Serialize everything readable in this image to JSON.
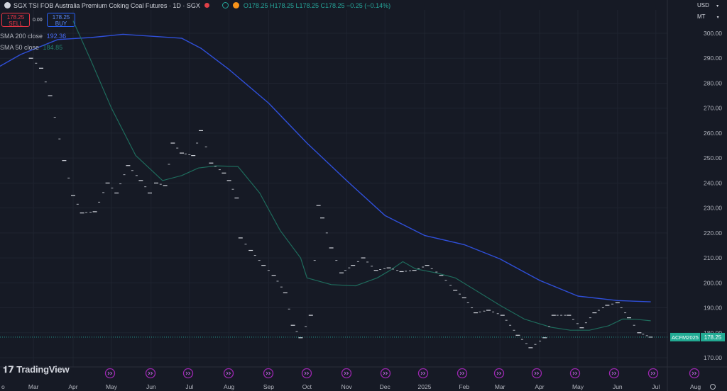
{
  "header": {
    "symbol_title": "SGX TSI FOB Australia Premium Coking Coal Futures · 1D · SGX",
    "ohlc": "O178.25 H178.25 L178.25 C178.25 −0.25 (−0.14%)"
  },
  "trade": {
    "sell_price": "178.25",
    "sell_label": "SELL",
    "spread": "0.00",
    "buy_price": "178.25",
    "buy_label": "BUY"
  },
  "indicators": {
    "sma200_label": "SMA 200 close",
    "sma200_value": "192.36",
    "sma50_label": "SMA 50 close",
    "sma50_value": "184.85"
  },
  "right_controls": {
    "currency": "USD",
    "unit": "MT"
  },
  "branding": {
    "logo_text": "TradingView"
  },
  "price_tag": {
    "symbol": "ACFM2025",
    "price": "178.25"
  },
  "colors": {
    "background": "#161a25",
    "sma200": "#2f4fd9",
    "sma50": "#1e6b5c",
    "price": "#26a69a",
    "label": "#22ab94"
  },
  "chart_data": {
    "type": "line",
    "title": "SGX TSI FOB Australia Premium Coking Coal Futures",
    "ylim": [
      165,
      305
    ],
    "y_ticks": [
      170,
      180,
      190,
      200,
      210,
      220,
      230,
      240,
      250,
      260,
      270,
      280,
      290,
      300
    ],
    "x_ticks": [
      "Mar",
      "Apr",
      "May",
      "Jun",
      "Jul",
      "Aug",
      "Sep",
      "Oct",
      "Nov",
      "Dec",
      "2025",
      "Feb",
      "Mar",
      "Apr",
      "May",
      "Jun",
      "Jul",
      "Aug"
    ],
    "x_start": "2024-02-01",
    "last_price": 178.25,
    "series": [
      {
        "name": "SMA 200 close",
        "color": "#2f4fd9",
        "points": [
          [
            "2024-02-01",
            286
          ],
          [
            "2024-02-20",
            291.5
          ],
          [
            "2024-03-20",
            297.5
          ],
          [
            "2024-04-15",
            298.3
          ],
          [
            "2024-05-10",
            299.6
          ],
          [
            "2024-06-05",
            298.7
          ],
          [
            "2024-06-25",
            298
          ],
          [
            "2024-07-10",
            294
          ],
          [
            "2024-08-01",
            285.5
          ],
          [
            "2024-09-01",
            272
          ],
          [
            "2024-10-01",
            256
          ],
          [
            "2024-11-01",
            241
          ],
          [
            "2024-12-01",
            227
          ],
          [
            "2025-01-01",
            219
          ],
          [
            "2025-02-01",
            215.3
          ],
          [
            "2025-03-01",
            209.6
          ],
          [
            "2025-04-01",
            201
          ],
          [
            "2025-05-01",
            194.7
          ],
          [
            "2025-06-01",
            192.9
          ],
          [
            "2025-06-27",
            192.4
          ]
        ]
      },
      {
        "name": "SMA 50 close",
        "color": "#1e6b5c",
        "points": [
          [
            "2024-04-01",
            305
          ],
          [
            "2024-04-15",
            289
          ],
          [
            "2024-05-01",
            270
          ],
          [
            "2024-05-20",
            251
          ],
          [
            "2024-06-10",
            241
          ],
          [
            "2024-06-25",
            243
          ],
          [
            "2024-07-08",
            246
          ],
          [
            "2024-07-22",
            246.9
          ],
          [
            "2024-08-08",
            246.6
          ],
          [
            "2024-08-25",
            236
          ],
          [
            "2024-09-10",
            221
          ],
          [
            "2024-09-26",
            210
          ],
          [
            "2024-10-01",
            202
          ],
          [
            "2024-10-20",
            199.3
          ],
          [
            "2024-11-08",
            198.8
          ],
          [
            "2024-11-25",
            202
          ],
          [
            "2024-12-05",
            205
          ],
          [
            "2024-12-15",
            208.5
          ],
          [
            "2024-12-25",
            205.6
          ],
          [
            "2025-01-10",
            204
          ],
          [
            "2025-01-25",
            202
          ],
          [
            "2025-02-10",
            197
          ],
          [
            "2025-03-01",
            191
          ],
          [
            "2025-03-20",
            185.5
          ],
          [
            "2025-04-10",
            182.2
          ],
          [
            "2025-04-25",
            181
          ],
          [
            "2025-05-10",
            181
          ],
          [
            "2025-05-25",
            182.8
          ],
          [
            "2025-06-05",
            185.5
          ],
          [
            "2025-06-15",
            185.4
          ],
          [
            "2025-06-27",
            184.8
          ]
        ]
      },
      {
        "name": "Close",
        "color": "#26a69a",
        "points": [
          [
            "2024-02-28",
            290
          ],
          [
            "2024-03-07",
            286
          ],
          [
            "2024-03-14",
            275
          ],
          [
            "2024-03-25",
            249
          ],
          [
            "2024-04-01",
            235
          ],
          [
            "2024-04-08",
            228
          ],
          [
            "2024-04-18",
            228.5
          ],
          [
            "2024-04-28",
            240
          ],
          [
            "2024-05-05",
            236
          ],
          [
            "2024-05-14",
            247
          ],
          [
            "2024-05-24",
            241
          ],
          [
            "2024-05-31",
            236
          ],
          [
            "2024-06-05",
            240
          ],
          [
            "2024-06-12",
            239
          ],
          [
            "2024-06-18",
            256
          ],
          [
            "2024-06-25",
            252
          ],
          [
            "2024-07-04",
            251
          ],
          [
            "2024-07-10",
            261
          ],
          [
            "2024-07-18",
            248
          ],
          [
            "2024-07-28",
            244
          ],
          [
            "2024-08-01",
            241
          ],
          [
            "2024-08-07",
            234
          ],
          [
            "2024-08-10",
            218
          ],
          [
            "2024-08-18",
            213
          ],
          [
            "2024-08-28",
            207
          ],
          [
            "2024-09-05",
            203
          ],
          [
            "2024-09-14",
            196
          ],
          [
            "2024-09-20",
            183
          ],
          [
            "2024-09-26",
            178
          ],
          [
            "2024-10-04",
            187
          ],
          [
            "2024-10-10",
            231
          ],
          [
            "2024-10-13",
            226
          ],
          [
            "2024-10-20",
            214
          ],
          [
            "2024-10-28",
            204
          ],
          [
            "2024-11-06",
            207
          ],
          [
            "2024-11-14",
            210
          ],
          [
            "2024-11-24",
            205
          ],
          [
            "2024-12-04",
            206
          ],
          [
            "2024-12-14",
            204.5
          ],
          [
            "2024-12-24",
            205
          ],
          [
            "2025-01-03",
            207
          ],
          [
            "2025-01-14",
            203
          ],
          [
            "2025-01-25",
            197
          ],
          [
            "2025-02-01",
            194
          ],
          [
            "2025-02-10",
            188
          ],
          [
            "2025-02-20",
            189
          ],
          [
            "2025-03-03",
            187
          ],
          [
            "2025-03-15",
            179
          ],
          [
            "2025-03-25",
            174
          ],
          [
            "2025-04-05",
            178
          ],
          [
            "2025-04-12",
            187
          ],
          [
            "2025-04-24",
            187
          ],
          [
            "2025-05-04",
            182
          ],
          [
            "2025-05-14",
            188
          ],
          [
            "2025-05-24",
            191
          ],
          [
            "2025-06-01",
            192
          ],
          [
            "2025-06-10",
            186
          ],
          [
            "2025-06-18",
            180
          ],
          [
            "2025-06-27",
            178.25
          ]
        ]
      }
    ]
  }
}
